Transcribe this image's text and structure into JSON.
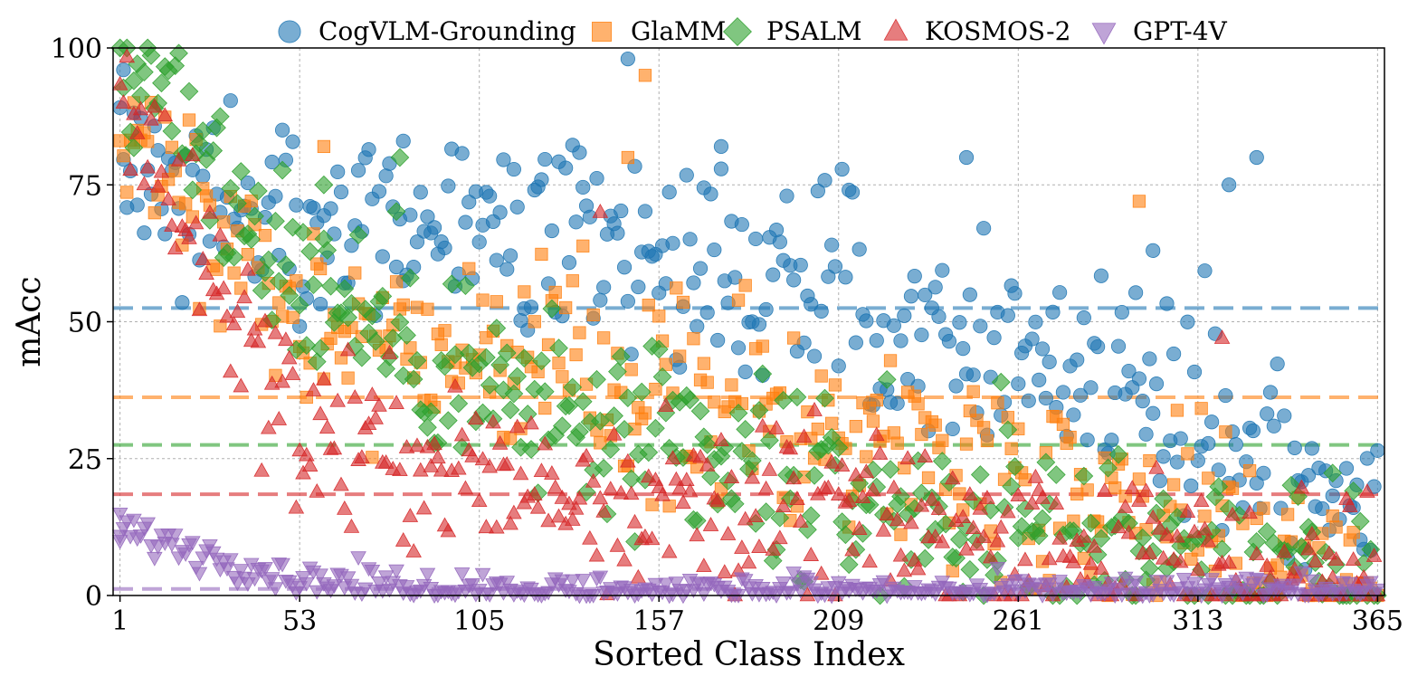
{
  "chart_data": {
    "type": "scatter",
    "title": "",
    "xlabel": "Sorted Class Index",
    "ylabel": "mAcc",
    "xlim": [
      -1,
      367
    ],
    "ylim": [
      0,
      100
    ],
    "xticks": [
      1,
      53,
      105,
      157,
      209,
      261,
      313,
      365
    ],
    "xtick_labels": [
      "1",
      "53",
      "105",
      "157",
      "209",
      "261",
      "313",
      "365"
    ],
    "yticks": [
      0,
      25,
      50,
      75,
      100
    ],
    "ytick_labels": [
      "0",
      "25",
      "50",
      "75",
      "100"
    ],
    "grid": true,
    "legend_position": "top",
    "n_classes": 365,
    "series": [
      {
        "name": "CogVLM-Grounding",
        "marker": "circle",
        "color": "#1f77b4",
        "mean": 52.5,
        "trend": [
          [
            1,
            78
          ],
          [
            53,
            70
          ],
          [
            105,
            65
          ],
          [
            157,
            62
          ],
          [
            209,
            55
          ],
          [
            261,
            45
          ],
          [
            313,
            35
          ],
          [
            365,
            11
          ]
        ],
        "outliers": [
          [
            2,
            96
          ],
          [
            148,
            98
          ],
          [
            83,
            83
          ],
          [
            300,
            63
          ],
          [
            330,
            80
          ],
          [
            322,
            75
          ],
          [
            246,
            80
          ],
          [
            175,
            82
          ]
        ]
      },
      {
        "name": "GlaMM",
        "marker": "square",
        "color": "#ff7f0e",
        "mean": 36.2,
        "trend": [
          [
            1,
            87
          ],
          [
            53,
            52
          ],
          [
            105,
            45
          ],
          [
            157,
            37
          ],
          [
            209,
            30
          ],
          [
            261,
            22
          ],
          [
            313,
            15
          ],
          [
            365,
            2
          ]
        ],
        "outliers": [
          [
            153,
            95
          ],
          [
            5,
            90
          ],
          [
            296,
            72
          ],
          [
            60,
            82
          ],
          [
            148,
            80
          ]
        ]
      },
      {
        "name": "PSALM",
        "marker": "diamond",
        "color": "#2ca02c",
        "mean": 27.5,
        "trend": [
          [
            1,
            100
          ],
          [
            53,
            58
          ],
          [
            105,
            38
          ],
          [
            157,
            25
          ],
          [
            209,
            18
          ],
          [
            261,
            12
          ],
          [
            313,
            7
          ],
          [
            365,
            2
          ]
        ],
        "outliers": [
          [
            5,
            94
          ],
          [
            82,
            80
          ],
          [
            60,
            75
          ]
        ]
      },
      {
        "name": "KOSMOS-2",
        "marker": "triangle-up",
        "color": "#d62728",
        "mean": 18.5,
        "trend": [
          [
            1,
            92
          ],
          [
            53,
            30
          ],
          [
            105,
            22
          ],
          [
            157,
            18
          ],
          [
            209,
            14
          ],
          [
            261,
            10
          ],
          [
            313,
            6
          ],
          [
            365,
            1
          ]
        ],
        "outliers": [
          [
            140,
            70
          ],
          [
            320,
            47
          ]
        ]
      },
      {
        "name": "GPT-4V",
        "marker": "triangle-down",
        "color": "#9467bd",
        "mean": 1.2,
        "trend": [
          [
            1,
            12
          ],
          [
            53,
            3
          ],
          [
            105,
            1
          ],
          [
            157,
            0.5
          ],
          [
            209,
            0.3
          ],
          [
            261,
            0.2
          ],
          [
            313,
            0.2
          ],
          [
            365,
            0
          ]
        ],
        "outliers": [
          [
            1,
            15
          ],
          [
            1,
            10
          ]
        ]
      }
    ]
  }
}
